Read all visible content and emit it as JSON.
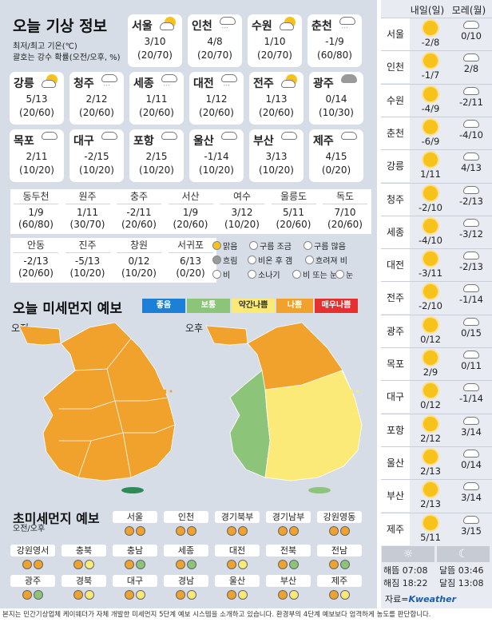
{
  "title_today": "오늘 기상 정보",
  "note_line1": "최저/최고 기온(℃)",
  "note_line2": "괄호는 강수 확률(오전/오후, %)",
  "top_cards": [
    {
      "name": "서울",
      "icon": "sun-cloud-rain-icon",
      "temp": "3/10",
      "pop": "(20/70)"
    },
    {
      "name": "인천",
      "icon": "cloud-rain-icon",
      "temp": "4/8",
      "pop": "(20/70)"
    },
    {
      "name": "수원",
      "icon": "sun-cloud-rain-icon",
      "temp": "1/10",
      "pop": "(20/70)"
    },
    {
      "name": "춘천",
      "icon": "cloud-rain-icon",
      "temp": "-1/9",
      "pop": "(60/80)"
    },
    {
      "name": "강릉",
      "icon": "sun-cloud-rain-icon",
      "temp": "5/13",
      "pop": "(20/60)"
    },
    {
      "name": "청주",
      "icon": "cloud-rain-icon",
      "temp": "2/12",
      "pop": "(20/60)"
    },
    {
      "name": "세종",
      "icon": "cloud-rain-icon",
      "temp": "1/11",
      "pop": "(20/60)"
    },
    {
      "name": "대전",
      "icon": "cloud-rain-icon",
      "temp": "1/12",
      "pop": "(20/60)"
    },
    {
      "name": "전주",
      "icon": "sun-cloud-rain-icon",
      "temp": "1/13",
      "pop": "(20/60)"
    },
    {
      "name": "광주",
      "icon": "overcast-icon",
      "temp": "0/14",
      "pop": "(10/30)"
    },
    {
      "name": "목포",
      "icon": "cloud-icon",
      "temp": "2/11",
      "pop": "(10/20)"
    },
    {
      "name": "대구",
      "icon": "cloud-icon",
      "temp": "-2/15",
      "pop": "(10/20)"
    },
    {
      "name": "포항",
      "icon": "cloud-icon",
      "temp": "2/15",
      "pop": "(10/20)"
    },
    {
      "name": "울산",
      "icon": "cloud-icon",
      "temp": "-1/14",
      "pop": "(10/20)"
    },
    {
      "name": "부산",
      "icon": "cloud-icon",
      "temp": "3/13",
      "pop": "(10/20)"
    },
    {
      "name": "제주",
      "icon": "cloud-icon",
      "temp": "4/15",
      "pop": "(0/20)"
    }
  ],
  "cities_row1": [
    {
      "name": "동두천",
      "temp": "1/9",
      "pop": "(60/80)"
    },
    {
      "name": "원주",
      "temp": "1/11",
      "pop": "(30/70)"
    },
    {
      "name": "충주",
      "temp": "-2/11",
      "pop": "(20/60)"
    },
    {
      "name": "서산",
      "temp": "1/9",
      "pop": "(20/60)"
    },
    {
      "name": "여수",
      "temp": "3/12",
      "pop": "(10/20)"
    },
    {
      "name": "울릉도",
      "temp": "5/11",
      "pop": "(20/60)"
    },
    {
      "name": "독도",
      "temp": "7/10",
      "pop": "(20/60)"
    }
  ],
  "cities_row2": [
    {
      "name": "안동",
      "temp": "-2/13",
      "pop": "(20/60)"
    },
    {
      "name": "진주",
      "temp": "-5/13",
      "pop": "(10/20)"
    },
    {
      "name": "창원",
      "temp": "0/12",
      "pop": "(10/20)"
    },
    {
      "name": "서귀포",
      "temp": "6/13",
      "pop": "(0/20)"
    }
  ],
  "legend": [
    "맑음",
    "구름 조금",
    "구름 많음",
    "흐림",
    "비온 후 갬",
    "흐려져 비",
    "비",
    "소나기",
    "비 또는 눈",
    "눈"
  ],
  "dust_title": "오늘 미세먼지 예보",
  "dust_levels": [
    {
      "label": "좋음",
      "color": "#1e7fd6"
    },
    {
      "label": "보통",
      "color": "#8cc47a"
    },
    {
      "label": "약간나쁨",
      "color": "#fbe978"
    },
    {
      "label": "나쁨",
      "color": "#f0a22c"
    },
    {
      "label": "매우나쁨",
      "color": "#e4312f"
    }
  ],
  "am_label": "오전",
  "pm_label": "오후",
  "ultra_title": "초미세먼지 예보",
  "ultra_sub": "오전/오후",
  "ultra_row1": [
    {
      "name": "서울",
      "am": "나쁨",
      "pm": "나쁨"
    },
    {
      "name": "인천",
      "am": "나쁨",
      "pm": "나쁨"
    },
    {
      "name": "경기북부",
      "am": "나쁨",
      "pm": "나쁨"
    },
    {
      "name": "경기남부",
      "am": "나쁨",
      "pm": "나쁨"
    },
    {
      "name": "강원영동",
      "am": "나쁨",
      "pm": "나쁨"
    }
  ],
  "ultra_row2": [
    {
      "name": "강원영서",
      "am": "나쁨",
      "pm": "나쁨"
    },
    {
      "name": "충북",
      "am": "나쁨",
      "pm": "약간나쁨"
    },
    {
      "name": "충남",
      "am": "나쁨",
      "pm": "보통"
    },
    {
      "name": "세종",
      "am": "나쁨",
      "pm": "보통"
    },
    {
      "name": "대전",
      "am": "나쁨",
      "pm": "약간나쁨"
    },
    {
      "name": "전북",
      "am": "나쁨",
      "pm": "보통"
    },
    {
      "name": "전남",
      "am": "나쁨",
      "pm": "보통"
    }
  ],
  "ultra_row3": [
    {
      "name": "광주",
      "am": "나쁨",
      "pm": "보통"
    },
    {
      "name": "경북",
      "am": "나쁨",
      "pm": "약간나쁨"
    },
    {
      "name": "대구",
      "am": "나쁨",
      "pm": "약간나쁨"
    },
    {
      "name": "경남",
      "am": "나쁨",
      "pm": "약간나쁨"
    },
    {
      "name": "울산",
      "am": "나쁨",
      "pm": "약간나쁨"
    },
    {
      "name": "부산",
      "am": "나쁨",
      "pm": "약간나쁨"
    },
    {
      "name": "제주",
      "am": "나쁨",
      "pm": "약간나쁨"
    }
  ],
  "forecast_header": [
    "내일(일)",
    "모레(월)"
  ],
  "forecast": [
    {
      "name": "서울",
      "d1": "-2/8",
      "d2": "0/10",
      "i1": "sun-icon",
      "i2": "cloud-icon"
    },
    {
      "name": "인천",
      "d1": "-1/7",
      "d2": "2/8",
      "i1": "sun-icon",
      "i2": "cloud-icon"
    },
    {
      "name": "수원",
      "d1": "-4/9",
      "d2": "-2/11",
      "i1": "sun-icon",
      "i2": "cloud-icon"
    },
    {
      "name": "춘천",
      "d1": "-6/9",
      "d2": "-4/10",
      "i1": "sun-icon",
      "i2": "cloud-icon"
    },
    {
      "name": "강릉",
      "d1": "1/11",
      "d2": "4/13",
      "i1": "sun-icon",
      "i2": "cloud-icon"
    },
    {
      "name": "청주",
      "d1": "-2/10",
      "d2": "-2/13",
      "i1": "sun-icon",
      "i2": "cloud-icon"
    },
    {
      "name": "세종",
      "d1": "-4/10",
      "d2": "-3/12",
      "i1": "sun-icon",
      "i2": "cloud-icon"
    },
    {
      "name": "대전",
      "d1": "-3/11",
      "d2": "-2/13",
      "i1": "sun-icon",
      "i2": "cloud-icon"
    },
    {
      "name": "전주",
      "d1": "-2/10",
      "d2": "-1/14",
      "i1": "sun-icon",
      "i2": "cloud-icon"
    },
    {
      "name": "광주",
      "d1": "0/12",
      "d2": "0/15",
      "i1": "sun-icon",
      "i2": "cloud-icon"
    },
    {
      "name": "목포",
      "d1": "2/9",
      "d2": "0/11",
      "i1": "sun-icon",
      "i2": "cloud-icon"
    },
    {
      "name": "대구",
      "d1": "0/12",
      "d2": "-1/14",
      "i1": "sun-icon",
      "i2": "cloud-icon"
    },
    {
      "name": "포항",
      "d1": "2/12",
      "d2": "3/14",
      "i1": "sun-icon",
      "i2": "cloud-icon"
    },
    {
      "name": "울산",
      "d1": "2/13",
      "d2": "0/14",
      "i1": "sun-icon",
      "i2": "cloud-icon"
    },
    {
      "name": "부산",
      "d1": "2/13",
      "d2": "3/14",
      "i1": "sun-icon",
      "i2": "cloud-icon"
    },
    {
      "name": "제주",
      "d1": "5/11",
      "d2": "3/15",
      "i1": "sun-icon",
      "i2": "cloud-icon"
    }
  ],
  "sunrise": "해뜸 07:08",
  "sunset": "해짐 18:22",
  "moonrise": "달뜸 03:46",
  "moonset": "달짐 13:08",
  "source_prefix": "자료=",
  "source_brand": "Kweather",
  "footer": "본지는 민간기상업체 케이웨더가 자체 개발한 미세먼지 5단계 예보 시스템을 소개하고 있습니다. 환경부의 4단계 예보보다 엄격하게 농도를 판단합니다."
}
